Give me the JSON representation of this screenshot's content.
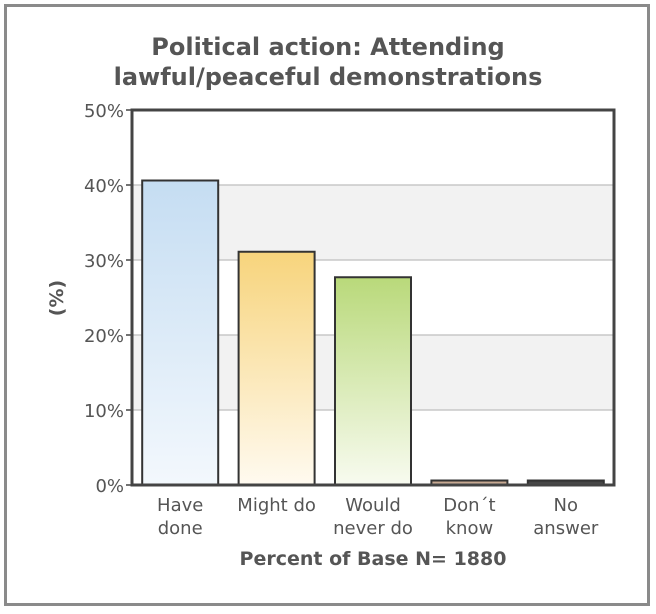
{
  "chart_data": {
    "type": "bar",
    "title_lines": [
      "Political action: Attending",
      "lawful/peaceful demonstrations"
    ],
    "xlabel": "Percent of Base N= 1880",
    "ylabel": "(%)",
    "ylim": [
      0,
      50
    ],
    "yticks": [
      0,
      10,
      20,
      30,
      40,
      50
    ],
    "ytick_suffix": "%",
    "grid": true,
    "categories": [
      [
        "Have",
        "done"
      ],
      [
        "Might do"
      ],
      [
        "Would",
        "never do"
      ],
      [
        "Don´t",
        "know"
      ],
      [
        "No",
        "answer"
      ]
    ],
    "values": [
      40.6,
      31.1,
      27.7,
      0.6,
      0.6
    ],
    "colors": [
      {
        "top": "#c5ddf2",
        "bottom": "#f3f8fd"
      },
      {
        "top": "#f7d47c",
        "bottom": "#fffaf0"
      },
      {
        "top": "#b9d97a",
        "bottom": "#f8fbf0"
      },
      {
        "top": "#b9957a",
        "bottom": "#d9c2b0"
      },
      {
        "top": "#3a3a3a",
        "bottom": "#555555"
      }
    ]
  }
}
